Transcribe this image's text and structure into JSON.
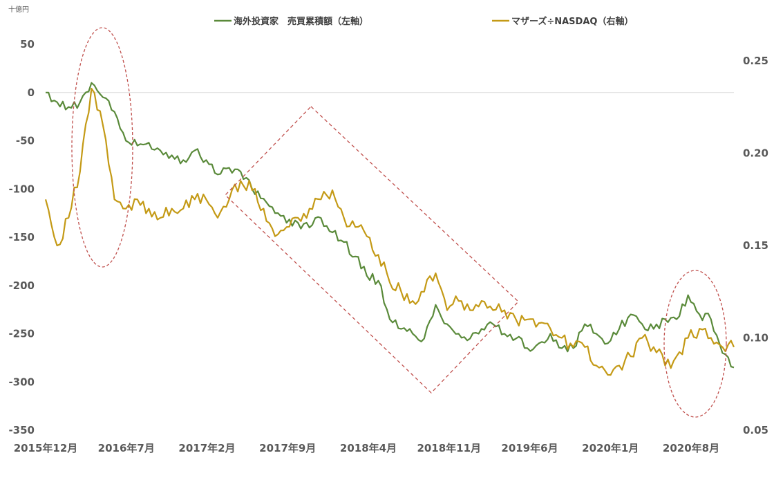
{
  "chart_data": {
    "type": "line",
    "unit_label": "十億円",
    "x_tick_labels": [
      "2015年12月",
      "2016年7月",
      "2017年2月",
      "2017年9月",
      "2018年4月",
      "2018年11月",
      "2019年6月",
      "2020年1月",
      "2020年8月"
    ],
    "y_left": {
      "ticks": [
        50,
        0,
        -50,
        -100,
        -150,
        -200,
        -250,
        -300,
        -350
      ],
      "range": [
        -350,
        50
      ]
    },
    "y_right": {
      "ticks": [
        "0.25",
        "0.20",
        "0.15",
        "0.10",
        "0.05"
      ],
      "range": [
        0.05,
        0.25
      ]
    },
    "colors": {
      "green": "#5a8a3a",
      "gold": "#c49a16",
      "annotation": "#c0504d",
      "zero_line": "#d9d9d9"
    },
    "series": [
      {
        "name": "海外投資家　売買累積額（左軸）",
        "axis": "left",
        "color": "#5a8a3a",
        "x": [
          "2015-12",
          "2016-01",
          "2016-02",
          "2016-03",
          "2016-04",
          "2016-05",
          "2016-06",
          "2016-07",
          "2016-08",
          "2016-09",
          "2016-10",
          "2016-11",
          "2016-12",
          "2017-01",
          "2017-02",
          "2017-03",
          "2017-04",
          "2017-05",
          "2017-06",
          "2017-07",
          "2017-08",
          "2017-09",
          "2017-10",
          "2017-11",
          "2017-12",
          "2018-01",
          "2018-02",
          "2018-03",
          "2018-04",
          "2018-05",
          "2018-06",
          "2018-07",
          "2018-08",
          "2018-09",
          "2018-10",
          "2018-11",
          "2018-12",
          "2019-01",
          "2019-02",
          "2019-03",
          "2019-04",
          "2019-05",
          "2019-06",
          "2019-07",
          "2019-08",
          "2019-09",
          "2019-10",
          "2019-11",
          "2019-12",
          "2020-01",
          "2020-02",
          "2020-03",
          "2020-04",
          "2020-05",
          "2020-06",
          "2020-07",
          "2020-08",
          "2020-09",
          "2020-10",
          "2020-11",
          "2020-12"
        ],
        "y": [
          0,
          -10,
          -15,
          -10,
          10,
          -5,
          -20,
          -50,
          -55,
          -52,
          -60,
          -65,
          -70,
          -60,
          -70,
          -85,
          -78,
          -82,
          -100,
          -110,
          -125,
          -135,
          -135,
          -140,
          -130,
          -145,
          -155,
          -170,
          -190,
          -195,
          -235,
          -245,
          -250,
          -255,
          -220,
          -240,
          -250,
          -255,
          -245,
          -240,
          -250,
          -255,
          -265,
          -260,
          -250,
          -265,
          -265,
          -240,
          -250,
          -260,
          -245,
          -230,
          -240,
          -245,
          -235,
          -235,
          -210,
          -230,
          -235,
          -270,
          -285
        ]
      },
      {
        "name": "マザーズ÷NASDAQ（右軸）",
        "axis": "right",
        "color": "#c49a16",
        "x": [
          "2015-12",
          "2016-01",
          "2016-02",
          "2016-03",
          "2016-04",
          "2016-05",
          "2016-06",
          "2016-07",
          "2016-08",
          "2016-09",
          "2016-10",
          "2016-11",
          "2016-12",
          "2017-01",
          "2017-02",
          "2017-03",
          "2017-04",
          "2017-05",
          "2017-06",
          "2017-07",
          "2017-08",
          "2017-09",
          "2017-10",
          "2017-11",
          "2017-12",
          "2018-01",
          "2018-02",
          "2018-03",
          "2018-04",
          "2018-05",
          "2018-06",
          "2018-07",
          "2018-08",
          "2018-09",
          "2018-10",
          "2018-11",
          "2018-12",
          "2019-01",
          "2019-02",
          "2019-03",
          "2019-04",
          "2019-05",
          "2019-06",
          "2019-07",
          "2019-08",
          "2019-09",
          "2019-10",
          "2019-11",
          "2019-12",
          "2020-01",
          "2020-02",
          "2020-03",
          "2020-04",
          "2020-05",
          "2020-06",
          "2020-07",
          "2020-08",
          "2020-09",
          "2020-10",
          "2020-11",
          "2020-12"
        ],
        "y": [
          0.175,
          0.15,
          0.165,
          0.19,
          0.235,
          0.215,
          0.175,
          0.17,
          0.175,
          0.17,
          0.165,
          0.17,
          0.17,
          0.175,
          0.175,
          0.165,
          0.175,
          0.185,
          0.18,
          0.17,
          0.155,
          0.16,
          0.165,
          0.17,
          0.175,
          0.18,
          0.165,
          0.16,
          0.155,
          0.145,
          0.13,
          0.125,
          0.12,
          0.125,
          0.135,
          0.115,
          0.12,
          0.115,
          0.12,
          0.115,
          0.115,
          0.11,
          0.11,
          0.108,
          0.105,
          0.1,
          0.095,
          0.095,
          0.085,
          0.08,
          0.085,
          0.09,
          0.1,
          0.095,
          0.085,
          0.09,
          0.1,
          0.105,
          0.1,
          0.095,
          0.095
        ]
      }
    ],
    "annotations": [
      "ellipse",
      "diamond",
      "ellipse"
    ]
  }
}
